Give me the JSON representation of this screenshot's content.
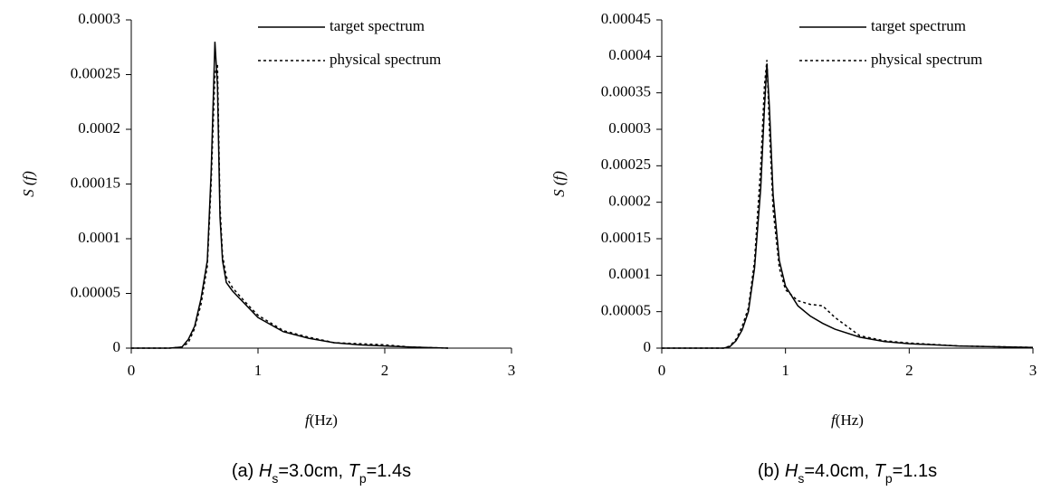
{
  "chart_data": [
    {
      "type": "line",
      "xlabel": [
        {
          "text": "f",
          "italic": true
        },
        {
          "text": "(Hz)"
        }
      ],
      "ylabel": "S (f)",
      "caption": [
        {
          "text": "(a) "
        },
        {
          "text": "H",
          "italic": true
        },
        {
          "text": "s",
          "sub": true
        },
        {
          "text": "=3.0cm, "
        },
        {
          "text": "T",
          "italic": true
        },
        {
          "text": "p",
          "sub": true
        },
        {
          "text": "=1.4s"
        }
      ],
      "x": [
        0,
        0.3,
        0.4,
        0.45,
        0.5,
        0.55,
        0.6,
        0.63,
        0.66,
        0.68,
        0.7,
        0.72,
        0.75,
        0.8,
        0.9,
        1.0,
        1.2,
        1.4,
        1.6,
        1.8,
        2.0,
        2.2,
        2.5
      ],
      "series": [
        {
          "name": "target spectrum",
          "color": "#000000",
          "style": "solid",
          "values": [
            0,
            0,
            1e-06,
            8e-06,
            2e-05,
            4.5e-05,
            8e-05,
            0.00016,
            0.00028,
            0.00024,
            0.00012,
            8e-05,
            6e-05,
            5.2e-05,
            4e-05,
            2.8e-05,
            1.5e-05,
            9e-06,
            5e-06,
            3e-06,
            2e-06,
            1e-06,
            0
          ]
        },
        {
          "name": "physical spectrum",
          "color": "#000000",
          "style": "dotted",
          "values": [
            0,
            0,
            1e-06,
            5e-06,
            1.8e-05,
            4e-05,
            7.5e-05,
            0.00015,
            0.00025,
            0.00026,
            0.00013,
            8.5e-05,
            6.5e-05,
            5.5e-05,
            4.2e-05,
            3e-05,
            1.6e-05,
            1e-05,
            5e-06,
            4e-06,
            3e-06,
            1e-06,
            0
          ]
        }
      ],
      "xlim": [
        0,
        3
      ],
      "xticks": [
        0,
        1,
        2,
        3
      ],
      "ylim": [
        0,
        0.0003
      ],
      "yticks": [
        0,
        5e-05,
        0.0001,
        0.00015,
        0.0002,
        0.00025,
        0.0003
      ],
      "grid": false,
      "legend": "upper right"
    },
    {
      "type": "line",
      "xlabel": [
        {
          "text": "f",
          "italic": true
        },
        {
          "text": "(Hz)"
        }
      ],
      "ylabel": "S (f)",
      "caption": [
        {
          "text": "(b) "
        },
        {
          "text": "H",
          "italic": true
        },
        {
          "text": "s",
          "sub": true
        },
        {
          "text": "=4.0cm, "
        },
        {
          "text": "T",
          "italic": true
        },
        {
          "text": "p",
          "sub": true
        },
        {
          "text": "=1.1s"
        }
      ],
      "x": [
        0,
        0.5,
        0.55,
        0.6,
        0.65,
        0.7,
        0.75,
        0.8,
        0.83,
        0.85,
        0.87,
        0.9,
        0.95,
        1.0,
        1.1,
        1.2,
        1.3,
        1.4,
        1.6,
        1.8,
        2.0,
        2.4,
        3.0
      ],
      "series": [
        {
          "name": "target spectrum",
          "color": "#000000",
          "style": "solid",
          "values": [
            0,
            0,
            2e-06,
            1e-05,
            2.5e-05,
            5e-05,
            0.00011,
            0.00022,
            0.00033,
            0.00039,
            0.00033,
            0.00021,
            0.00012,
            8.5e-05,
            5.8e-05,
            4.4e-05,
            3.4e-05,
            2.6e-05,
            1.5e-05,
            9e-06,
            6e-06,
            3e-06,
            1e-06
          ]
        },
        {
          "name": "physical spectrum",
          "color": "#000000",
          "style": "dotted",
          "values": [
            0,
            0,
            3e-06,
            1.2e-05,
            3e-05,
            5.5e-05,
            0.00012,
            0.00025,
            0.00036,
            0.000395,
            0.0003,
            0.00019,
            0.00011,
            8e-05,
            6.5e-05,
            6e-05,
            5.8e-05,
            4.2e-05,
            1.7e-05,
            1e-05,
            7e-06,
            3e-06,
            1e-06
          ]
        }
      ],
      "xlim": [
        0,
        3
      ],
      "xticks": [
        0,
        1,
        2,
        3
      ],
      "ylim": [
        0,
        0.00045
      ],
      "yticks": [
        0,
        5e-05,
        0.0001,
        0.00015,
        0.0002,
        0.00025,
        0.0003,
        0.00035,
        0.0004,
        0.00045
      ],
      "grid": false,
      "legend": "upper right"
    }
  ]
}
